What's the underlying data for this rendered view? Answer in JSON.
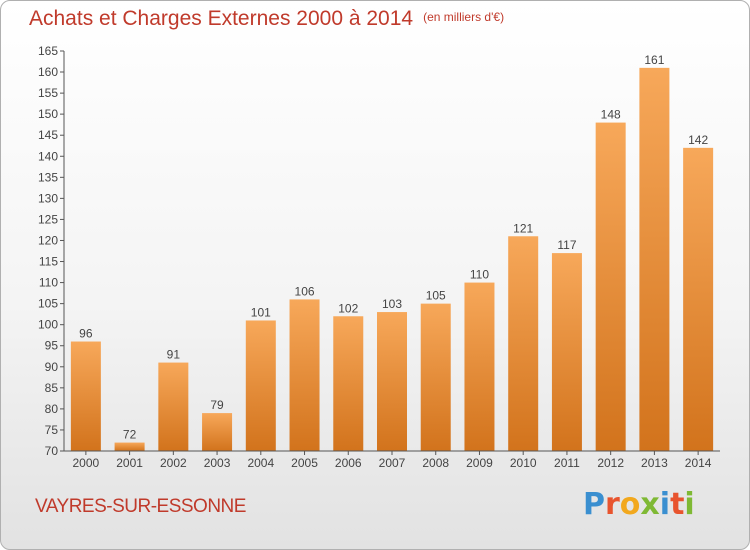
{
  "header": {
    "title": "Achats et Charges Externes 2000 à 2014",
    "subtitle": "(en milliers d'€)"
  },
  "footer": {
    "commune": "VAYRES-SUR-ESSONNE",
    "logo_letters": [
      "P",
      "r",
      "o",
      "x",
      "i",
      "t",
      "i"
    ],
    "logo_colors": [
      "#3a8fd0",
      "#e8542e",
      "#f2a81d",
      "#7fb934",
      "#3a8fd0",
      "#e8542e",
      "#7fb934"
    ]
  },
  "colors": {
    "bar_light": "#f7a85a",
    "bar_dark": "#d2731c",
    "accent": "#c03a2b"
  },
  "chart_data": {
    "type": "bar",
    "title": "Achats et Charges Externes 2000 à 2014",
    "subtitle": "(en milliers d'€)",
    "categories": [
      "2000",
      "2001",
      "2002",
      "2003",
      "2004",
      "2005",
      "2006",
      "2007",
      "2008",
      "2009",
      "2010",
      "2011",
      "2012",
      "2013",
      "2014"
    ],
    "values": [
      96,
      72,
      91,
      79,
      101,
      106,
      102,
      103,
      105,
      110,
      121,
      117,
      148,
      161,
      142
    ],
    "ylim": [
      70,
      165
    ],
    "yticks": [
      70,
      75,
      80,
      85,
      90,
      95,
      100,
      105,
      110,
      115,
      120,
      125,
      130,
      135,
      140,
      145,
      150,
      155,
      160,
      165
    ],
    "grid": false,
    "data_labels": true
  }
}
